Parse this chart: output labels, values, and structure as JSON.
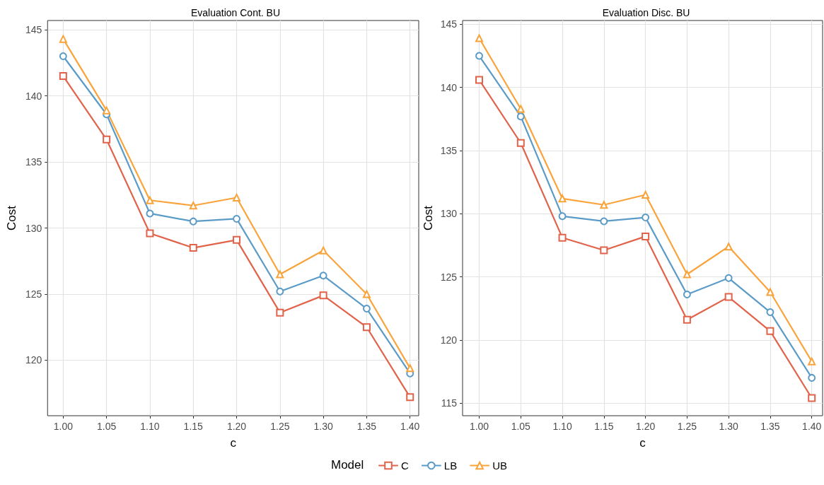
{
  "chart_data": [
    {
      "type": "line",
      "title": "Evaluation Cont. BU",
      "xlabel": "c",
      "ylabel": "Cost",
      "grid": true,
      "line_style": "solid",
      "x": [
        1.0,
        1.05,
        1.1,
        1.15,
        1.2,
        1.25,
        1.3,
        1.35,
        1.4
      ],
      "xlim": [
        0.982,
        1.41
      ],
      "xticks": [
        {
          "value": 1.0,
          "label": "1.00"
        },
        {
          "value": 1.05,
          "label": "1.05"
        },
        {
          "value": 1.1,
          "label": "1.10"
        },
        {
          "value": 1.15,
          "label": "1.15"
        },
        {
          "value": 1.2,
          "label": "1.20"
        },
        {
          "value": 1.25,
          "label": "1.25"
        },
        {
          "value": 1.3,
          "label": "1.30"
        },
        {
          "value": 1.35,
          "label": "1.35"
        },
        {
          "value": 1.4,
          "label": "1.40"
        }
      ],
      "ylim": [
        115.8,
        145.7
      ],
      "yticks": [
        120,
        125,
        130,
        135,
        140,
        145
      ],
      "series": [
        {
          "color": "#e0634a",
          "marker": "square",
          "values": [
            141.5,
            136.7,
            129.6,
            128.5,
            129.1,
            123.6,
            124.9,
            122.5,
            117.2
          ]
        },
        {
          "color": "#5b9bc8",
          "marker": "circle",
          "values": [
            143.0,
            138.6,
            131.1,
            130.5,
            130.7,
            125.2,
            126.4,
            123.9,
            119.0
          ]
        },
        {
          "color": "#f9a33b",
          "marker": "triangle",
          "values": [
            144.3,
            138.9,
            132.1,
            131.7,
            132.3,
            126.5,
            128.3,
            125.0,
            119.4
          ]
        }
      ]
    },
    {
      "type": "line",
      "title": "Evaluation Disc. BU",
      "xlabel": "c",
      "ylabel": "Cost",
      "legend_title": "Model",
      "legend": "bottom",
      "grid": true,
      "line_style": "solid",
      "x": [
        1.0,
        1.05,
        1.1,
        1.15,
        1.2,
        1.25,
        1.3,
        1.35,
        1.4
      ],
      "xlim": [
        0.98,
        1.413
      ],
      "xticks": [
        {
          "value": 1.0,
          "label": "1.00"
        },
        {
          "value": 1.05,
          "label": "1.05"
        },
        {
          "value": 1.1,
          "label": "1.10"
        },
        {
          "value": 1.15,
          "label": "1.15"
        },
        {
          "value": 1.2,
          "label": "1.20"
        },
        {
          "value": 1.25,
          "label": "1.25"
        },
        {
          "value": 1.3,
          "label": "1.30"
        },
        {
          "value": 1.35,
          "label": "1.35"
        },
        {
          "value": 1.4,
          "label": "1.40"
        }
      ],
      "ylim": [
        114.0,
        145.3
      ],
      "yticks": [
        115,
        120,
        125,
        130,
        135,
        140,
        145
      ],
      "series": [
        {
          "name": "C",
          "color": "#e0634a",
          "marker": "square",
          "values": [
            140.6,
            135.6,
            128.1,
            127.1,
            128.2,
            121.6,
            123.4,
            120.7,
            115.4
          ]
        },
        {
          "name": "LB",
          "color": "#5b9bc8",
          "marker": "circle",
          "values": [
            142.5,
            137.7,
            129.8,
            129.4,
            129.7,
            123.6,
            124.9,
            122.2,
            117.0
          ]
        },
        {
          "name": "UB",
          "color": "#f9a33b",
          "marker": "triangle",
          "values": [
            143.9,
            138.3,
            131.2,
            130.7,
            131.5,
            125.2,
            127.4,
            123.8,
            118.3
          ]
        }
      ]
    }
  ]
}
